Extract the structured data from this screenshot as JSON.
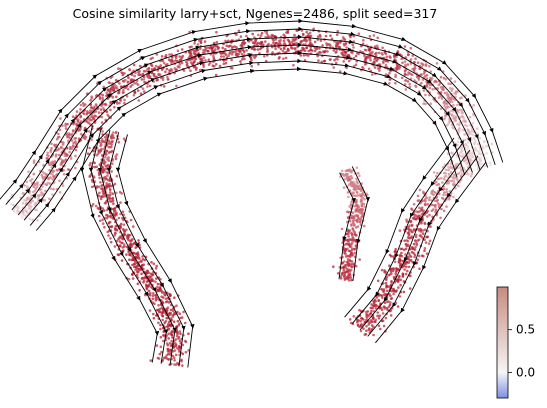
{
  "chart_data": {
    "type": "scatter",
    "title": "Cosine similarity larry+sct, Ngenes=2486, split seed=317",
    "colormap": {
      "name": "diverging blue-white-red",
      "low_color": "#7f8fe6",
      "mid_color": "#f5f5f5",
      "high_color": "#b2182b",
      "range": [
        -0.3,
        1.0
      ],
      "ticks": [
        0.0,
        0.5
      ],
      "tick_labels": [
        "0.0",
        "0.5"
      ]
    },
    "axes_visible": false,
    "overlay": "velocity stream lines with arrowheads",
    "regions": [
      {
        "name": "upper arc",
        "similarity": 0.85
      },
      {
        "name": "left tip",
        "similarity": 0.2
      },
      {
        "name": "right cluster",
        "similarity": 0.1
      },
      {
        "name": "lower left lobe",
        "similarity": 0.95
      },
      {
        "name": "lower right lobe",
        "similarity": 0.95
      }
    ]
  }
}
